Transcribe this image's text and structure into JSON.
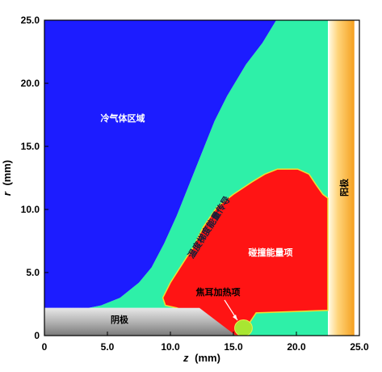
{
  "chart_data": {
    "type": "heatmap",
    "title": "",
    "xlabel": "z (mm)",
    "ylabel": "r (mm)",
    "xlabel_var": "z",
    "xlabel_unit": "(mm)",
    "ylabel_var": "r",
    "ylabel_unit": "(mm)",
    "xlim": [
      0,
      25
    ],
    "ylim": [
      0,
      25
    ],
    "xticks": [
      0,
      5,
      10,
      15,
      20,
      25
    ],
    "xtick_labels": [
      "0",
      "5.0",
      "10.0",
      "15.0",
      "20.0",
      "25.0"
    ],
    "yticks": [
      0,
      5,
      10,
      15,
      20,
      25
    ],
    "ytick_labels": [
      "0",
      "5.0",
      "10.0",
      "15.0",
      "20.0",
      "25.0"
    ],
    "regions": [
      {
        "label": "冷气体区域",
        "color": "#1c1cff",
        "boundary": [
          [
            0,
            25
          ],
          [
            18.4,
            25
          ],
          [
            17.3,
            23.2
          ],
          [
            16.0,
            21.5
          ],
          [
            14.5,
            19.0
          ],
          [
            13.5,
            17.0
          ],
          [
            12.5,
            14.5
          ],
          [
            11.5,
            12.0
          ],
          [
            10.5,
            9.5
          ],
          [
            9.5,
            7.3
          ],
          [
            8.5,
            5.4
          ],
          [
            7.5,
            4.2
          ],
          [
            6.0,
            3.0
          ],
          [
            4.5,
            2.4
          ],
          [
            3.5,
            2.2
          ],
          [
            0,
            2.2
          ]
        ]
      },
      {
        "label": "温度梯度能量传导",
        "color": "#2ef0a8",
        "boundary": [
          [
            18.4,
            25
          ],
          [
            22.5,
            25
          ],
          [
            22.5,
            0
          ],
          [
            15.6,
            0
          ],
          [
            13.5,
            1.2
          ],
          [
            12.5,
            2.2
          ],
          [
            0,
            2.2
          ],
          [
            3.5,
            2.2
          ],
          [
            4.5,
            2.4
          ],
          [
            6.0,
            3.0
          ],
          [
            7.5,
            4.2
          ],
          [
            8.5,
            5.4
          ],
          [
            9.5,
            7.3
          ],
          [
            10.5,
            9.5
          ],
          [
            11.5,
            12.0
          ],
          [
            12.5,
            14.5
          ],
          [
            13.5,
            17.0
          ],
          [
            14.5,
            19.0
          ],
          [
            16.0,
            21.5
          ],
          [
            17.3,
            23.2
          ]
        ]
      },
      {
        "label": "碰撞能量项",
        "color": "#ff1414",
        "boundary": [
          [
            9.4,
            3.0
          ],
          [
            10.0,
            4.2
          ],
          [
            10.9,
            5.6
          ],
          [
            11.8,
            7.0
          ],
          [
            12.6,
            8.6
          ],
          [
            13.7,
            10.2
          ],
          [
            15.0,
            11.2
          ],
          [
            16.5,
            12.2
          ],
          [
            17.5,
            12.8
          ],
          [
            18.5,
            13.2
          ],
          [
            20.1,
            13.2
          ],
          [
            21.0,
            12.8
          ],
          [
            21.6,
            11.9
          ],
          [
            22.1,
            11.2
          ],
          [
            22.5,
            10.9
          ],
          [
            22.5,
            2.0
          ],
          [
            16.8,
            1.8
          ],
          [
            15.6,
            0
          ],
          [
            14.3,
            0
          ],
          [
            12.5,
            1.4
          ],
          [
            10.5,
            2.2
          ],
          [
            9.6,
            2.4
          ]
        ]
      },
      {
        "label": "焦耳加热项",
        "color": "#a8e632",
        "ellipse": {
          "cz": 15.8,
          "cr": 0.6,
          "rz": 0.7,
          "rr": 0.65
        }
      },
      {
        "label": "阴极",
        "label_side": "cathode",
        "color": "#a0a0a0",
        "boundary": [
          [
            0,
            0
          ],
          [
            0,
            2.2
          ],
          [
            12.3,
            2.2
          ],
          [
            15.2,
            0
          ]
        ]
      },
      {
        "label": "阳极",
        "label_side": "anode",
        "color": "#f5b030",
        "rect": {
          "z0": 22.6,
          "z1": 24.6,
          "r0": 0,
          "r1": 25
        }
      }
    ],
    "annotations": [
      {
        "text": "焦耳加热项",
        "target": [
          15.5,
          0.8
        ]
      }
    ]
  },
  "labels": {
    "cold_gas": "冷气体区域",
    "conduction": "温度梯度能量传导",
    "collision": "碰撞能量项",
    "joule": "焦耳加热项",
    "cathode": "阴极",
    "anode": "阳极"
  },
  "colors": {
    "cold_gas": "#1c1cff",
    "conduction": "#2ef0a8",
    "collision": "#ff1414",
    "joule": "#a8e632",
    "cathode": "#a0a0a0",
    "anode": "#f5b030"
  }
}
